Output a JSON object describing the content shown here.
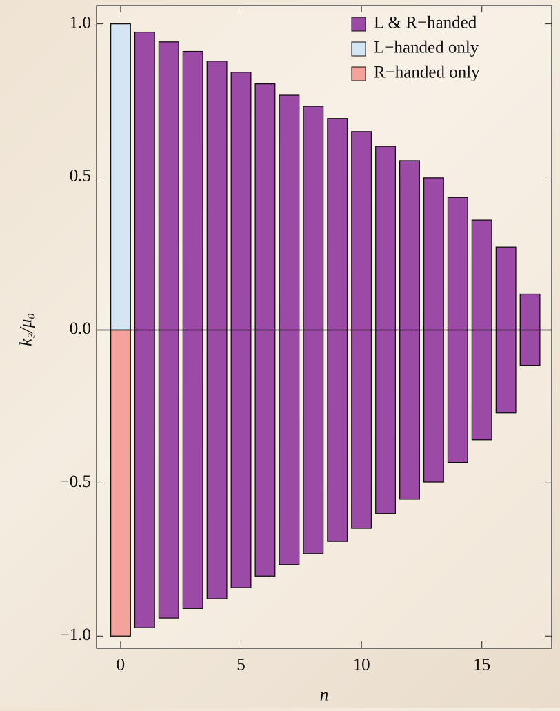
{
  "chart_data": {
    "type": "bar",
    "xlabel": "n",
    "ylabel": "k₃/μ₀",
    "x": [
      0,
      1,
      2,
      3,
      4,
      5,
      6,
      7,
      8,
      9,
      10,
      11,
      12,
      13,
      14,
      15,
      16,
      17
    ],
    "series": [
      {
        "name": "L & R−handed",
        "color": "#9b4aa6",
        "symmetric": true,
        "values": [
          null,
          0.973,
          0.941,
          0.91,
          0.878,
          0.842,
          0.804,
          0.767,
          0.731,
          0.691,
          0.648,
          0.6,
          0.553,
          0.497,
          0.433,
          0.359,
          0.271,
          0.117
        ]
      },
      {
        "name": "L−handed only",
        "color": "#d4e6f4",
        "values": [
          1,
          null,
          null,
          null,
          null,
          null,
          null,
          null,
          null,
          null,
          null,
          null,
          null,
          null,
          null,
          null,
          null,
          null
        ]
      },
      {
        "name": "R−handed only",
        "color": "#f4a39b",
        "values": [
          -1,
          null,
          null,
          null,
          null,
          null,
          null,
          null,
          null,
          null,
          null,
          null,
          null,
          null,
          null,
          null,
          null,
          null
        ]
      }
    ],
    "xlim": [
      -1,
      17.9
    ],
    "ylim": [
      -1.04,
      1.06
    ],
    "xticks": [
      0,
      5,
      10,
      15
    ],
    "yticks": [
      {
        "value": -1,
        "label": "−1.0"
      },
      {
        "value": -0.5,
        "label": "−0.5"
      },
      {
        "value": 0,
        "label": "0.0"
      },
      {
        "value": 0.5,
        "label": "0.5"
      },
      {
        "value": 1,
        "label": "1.0"
      }
    ],
    "legend": "top-right"
  }
}
